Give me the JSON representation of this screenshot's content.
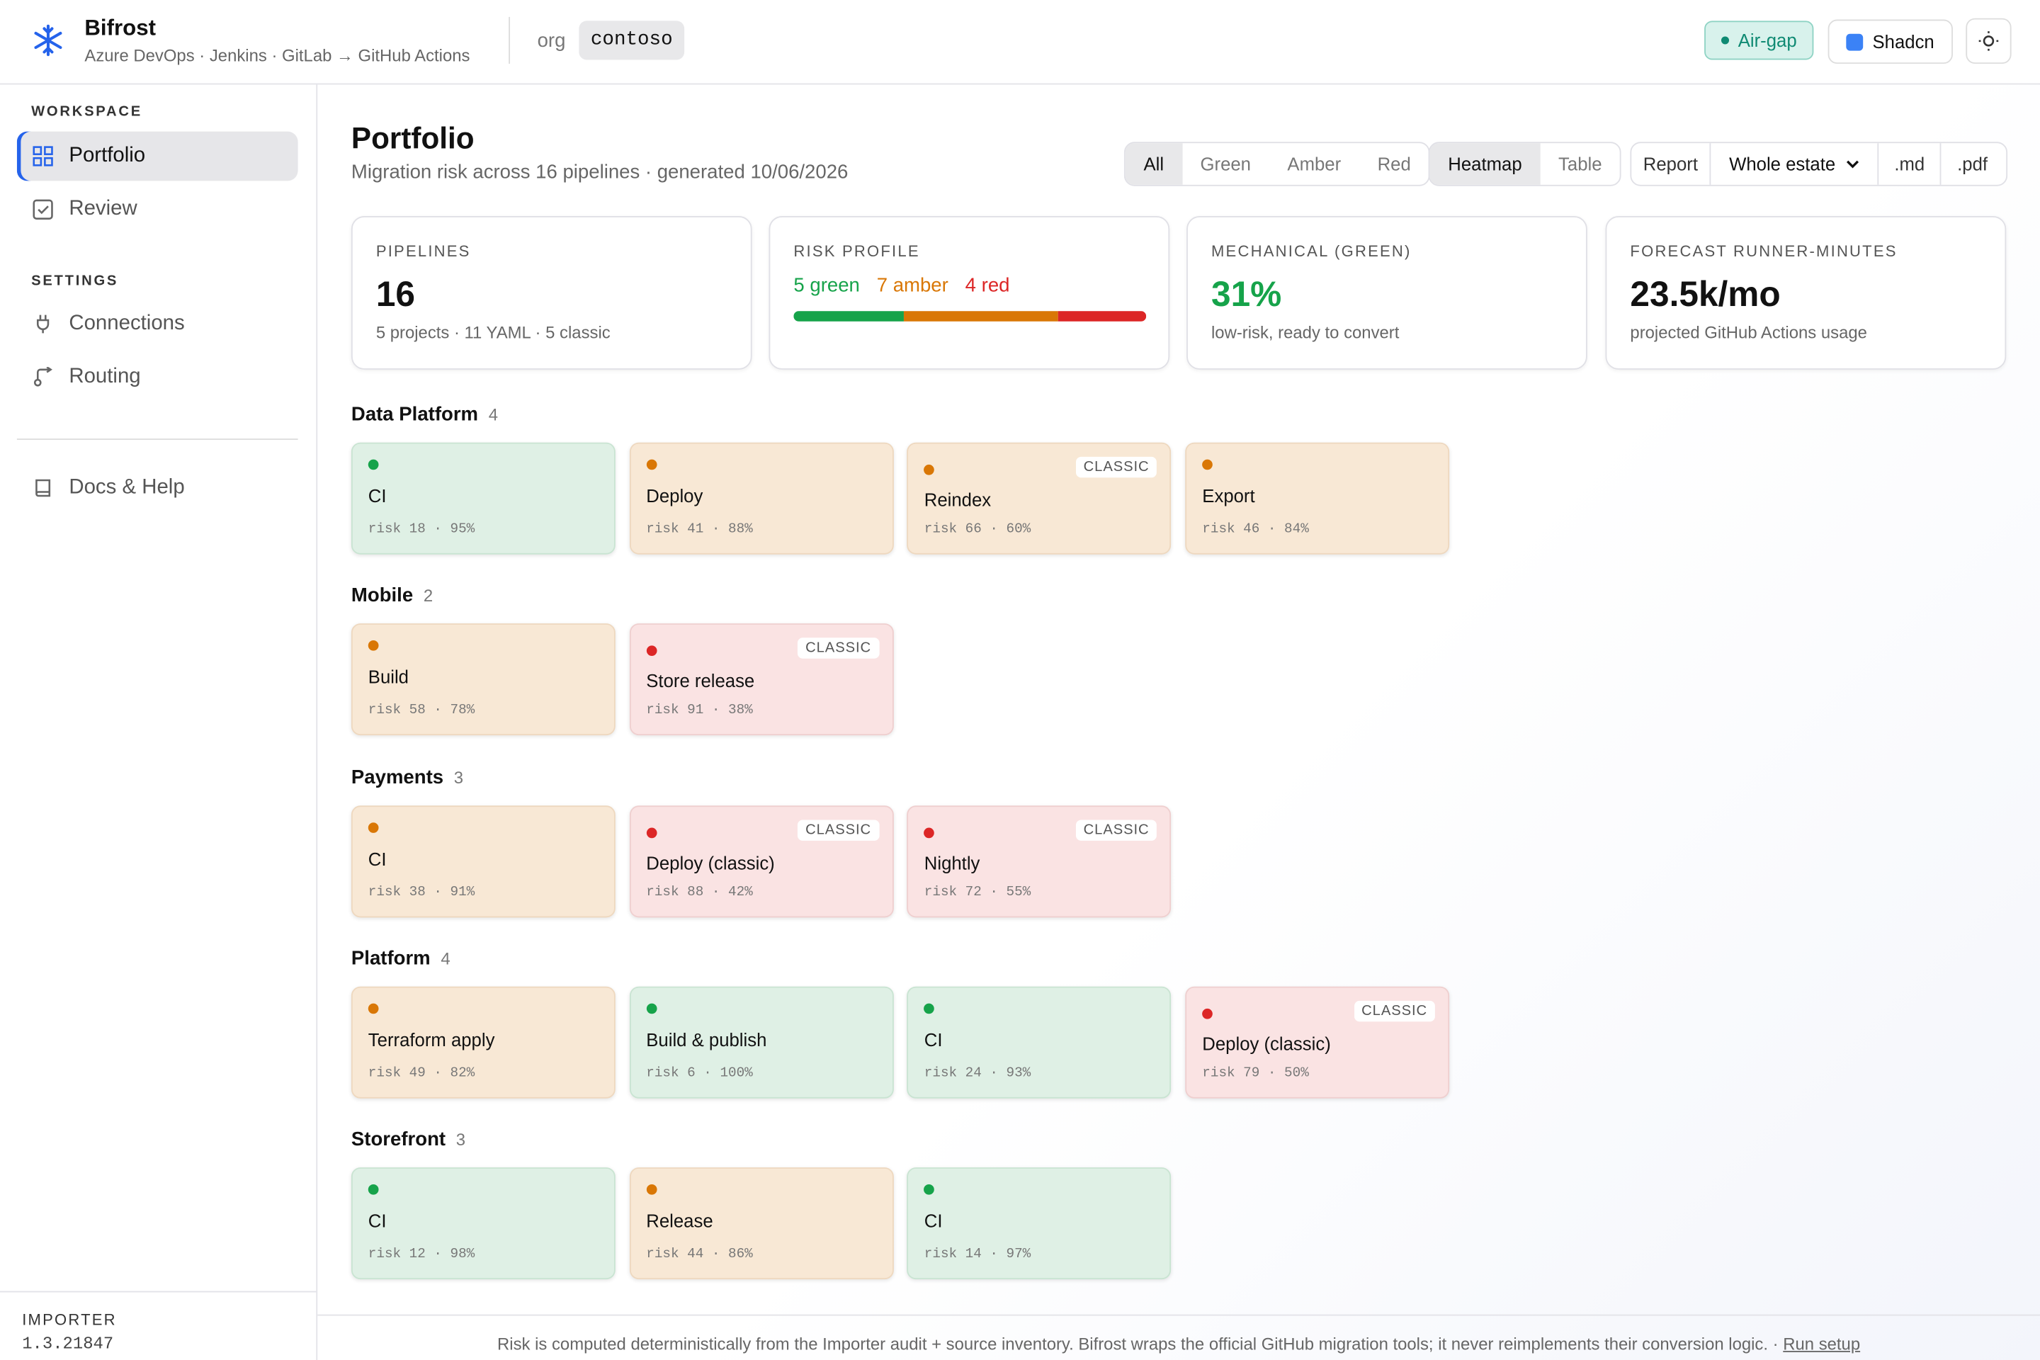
{
  "app": {
    "name": "Bifrost",
    "subtitle": "Azure DevOps · Jenkins · GitLab → GitHub Actions",
    "org_label": "org",
    "org": "contoso",
    "airgap": "Air-gap",
    "theme": "Shadcn"
  },
  "sidebar": {
    "workspace_title": "WORKSPACE",
    "workspace": [
      "Portfolio",
      "Review"
    ],
    "settings_title": "SETTINGS",
    "settings": [
      "Connections",
      "Routing"
    ],
    "help": "Docs & Help",
    "footer_label": "IMPORTER",
    "version": "1.3.21847"
  },
  "page": {
    "title": "Portfolio",
    "subtitle": "Migration risk across 16 pipelines · generated 10/06/2026",
    "filters": [
      "All",
      "Green",
      "Amber",
      "Red"
    ],
    "views": [
      "Heatmap",
      "Table"
    ],
    "report_label": "Report",
    "report_scope": "Whole estate",
    "formats": [
      ".md",
      ".pdf"
    ]
  },
  "stats": {
    "pipelines": {
      "label": "PIPELINES",
      "value": "16",
      "note": "5 projects · 11 YAML · 5 classic"
    },
    "risk": {
      "label": "RISK PROFILE",
      "segments": [
        {
          "value": 5,
          "label": "5 green",
          "color": "#16a34a"
        },
        {
          "value": 7,
          "label": "7 amber",
          "color": "#d97706"
        },
        {
          "value": 4,
          "label": "4 red",
          "color": "#dc2626"
        }
      ]
    },
    "mechanical": {
      "label": "MECHANICAL (GREEN)",
      "value": "31%",
      "note": "low-risk, ready to convert"
    },
    "forecast": {
      "label": "FORECAST RUNNER-MINUTES",
      "value": "23.5k/mo",
      "note": "projected GitHub Actions usage"
    }
  },
  "groups": [
    {
      "name": "Data Platform",
      "count": "4",
      "cards": [
        {
          "name": "CI",
          "color": "green",
          "meta": "risk 18 · 95%"
        },
        {
          "name": "Deploy",
          "color": "amber",
          "meta": "risk 41 · 88%"
        },
        {
          "name": "Reindex",
          "color": "amber",
          "badge": "CLASSIC",
          "meta": "risk 66 · 60%"
        },
        {
          "name": "Export",
          "color": "amber",
          "meta": "risk 46 · 84%"
        }
      ]
    },
    {
      "name": "Mobile",
      "count": "2",
      "cards": [
        {
          "name": "Build",
          "color": "amber",
          "meta": "risk 58 · 78%"
        },
        {
          "name": "Store release",
          "color": "red",
          "badge": "CLASSIC",
          "meta": "risk 91 · 38%"
        }
      ]
    },
    {
      "name": "Payments",
      "count": "3",
      "cards": [
        {
          "name": "CI",
          "color": "amber",
          "meta": "risk 38 · 91%"
        },
        {
          "name": "Deploy (classic)",
          "color": "red",
          "badge": "CLASSIC",
          "meta": "risk 88 · 42%"
        },
        {
          "name": "Nightly",
          "color": "red",
          "badge": "CLASSIC",
          "meta": "risk 72 · 55%"
        }
      ]
    },
    {
      "name": "Platform",
      "count": "4",
      "cards": [
        {
          "name": "Terraform apply",
          "color": "amber",
          "meta": "risk 49 · 82%"
        },
        {
          "name": "Build & publish",
          "color": "green",
          "meta": "risk 6 · 100%"
        },
        {
          "name": "CI",
          "color": "green",
          "meta": "risk 24 · 93%"
        },
        {
          "name": "Deploy (classic)",
          "color": "red",
          "badge": "CLASSIC",
          "meta": "risk 79 · 50%"
        }
      ]
    },
    {
      "name": "Storefront",
      "count": "3",
      "cards": [
        {
          "name": "CI",
          "color": "green",
          "meta": "risk 12 · 98%"
        },
        {
          "name": "Release",
          "color": "amber",
          "meta": "risk 44 · 86%"
        },
        {
          "name": "CI",
          "color": "green",
          "meta": "risk 14 · 97%"
        }
      ]
    }
  ],
  "footer": {
    "text": "Risk is computed deterministically from the Importer audit + source inventory. Bifrost wraps the official GitHub migration tools; it never reimplements their conversion logic. ·",
    "link": "Run setup"
  }
}
